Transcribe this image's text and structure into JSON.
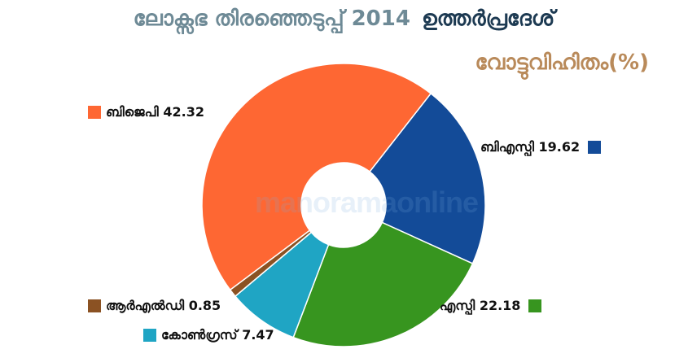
{
  "header": {
    "title_part1": "ലോക്സഭ തിരഞ്ഞെടുപ്പ് 2014",
    "title_part2": "ഉത്തർപ്രദേശ്",
    "subtitle": "വോട്ടുവിഹിതം(%)",
    "watermark": "manoramaonline"
  },
  "chart_data": {
    "type": "pie",
    "variant": "donut",
    "title": "ലോക്സഭ തിരഞ്ഞെടുപ്പ് 2014 ഉത്തർപ്രദേശ്",
    "subtitle": "വോട്ടുവിഹിതം(%)",
    "slices": [
      {
        "label": "ബിജെപി",
        "value": 42.32,
        "value_label": "42.32",
        "color": "#fe6733"
      },
      {
        "label": "ബിഎസ്പി",
        "value": 19.62,
        "value_label": "19.62",
        "color": "#134b98"
      },
      {
        "label": "എസ്പി",
        "value": 22.18,
        "value_label": "22.18",
        "color": "#37951f"
      },
      {
        "label": "കോൺഗ്രസ്",
        "value": 7.47,
        "value_label": "7.47",
        "color": "#1fa5c4"
      },
      {
        "label": "ആർഎൽഡി",
        "value": 0.85,
        "value_label": "0.85",
        "color": "#8b5223"
      }
    ],
    "legend_placement": "around chart"
  }
}
